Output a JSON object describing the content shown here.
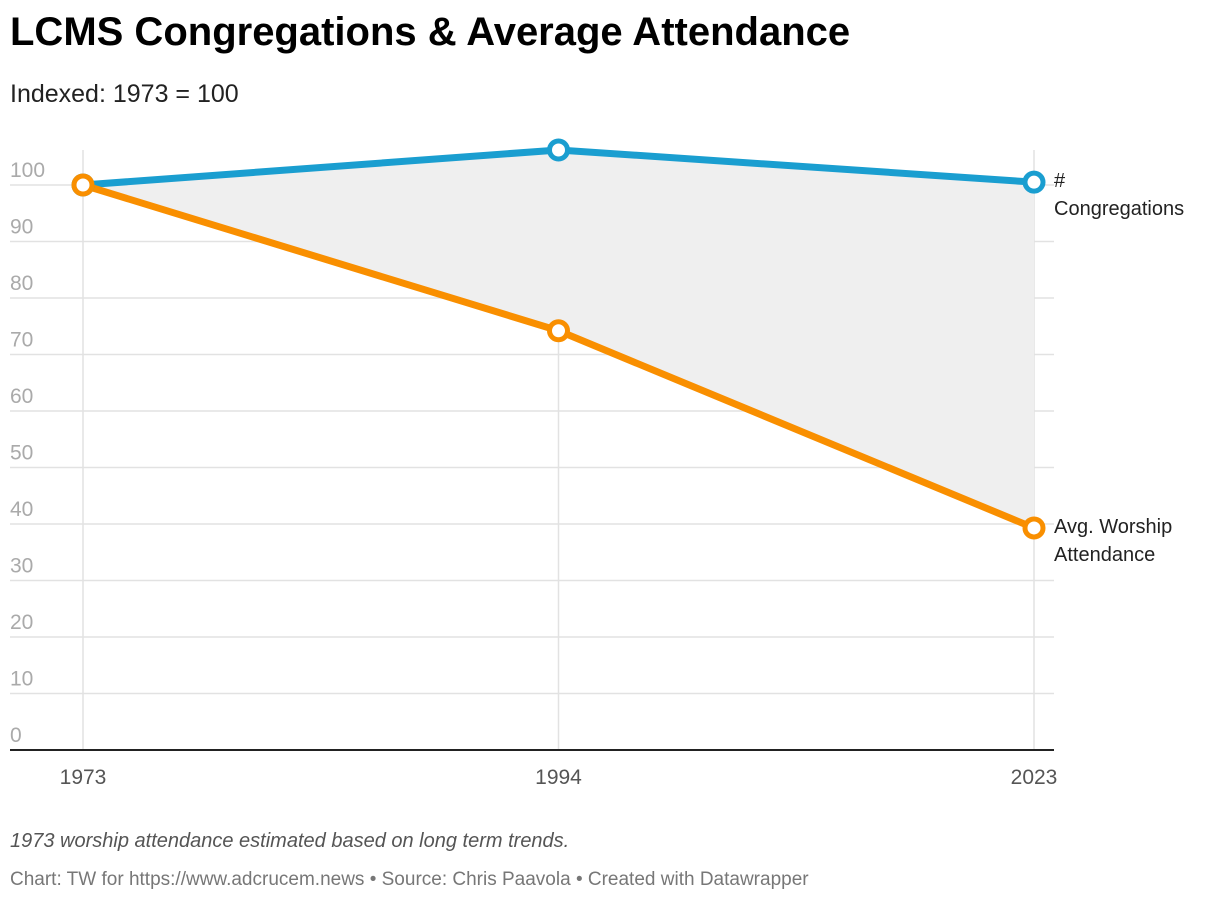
{
  "chart_data": {
    "type": "line",
    "title": "LCMS Congregations & Average Attendance",
    "subtitle": "Indexed: 1973 = 100",
    "note": "1973 worship attendance estimated based on long term trends.",
    "source": "Chart: TW for https://www.adcrucem.news  • Source: Chris Paavola • Created with Datawrapper",
    "categories": [
      "1973",
      "1994",
      "2023"
    ],
    "series": [
      {
        "name": "# Congregations",
        "color": "#1a9ed0",
        "values": [
          100,
          106.2,
          100.5
        ]
      },
      {
        "name": "Avg. Worship Attendance",
        "color": "#f98f00",
        "values": [
          100,
          74.2,
          39.3
        ]
      }
    ],
    "ylim": [
      0,
      100
    ],
    "yticks": [
      0,
      10,
      20,
      30,
      40,
      50,
      60,
      70,
      80,
      90,
      100
    ],
    "grid": true,
    "area_between_color": "#efefef"
  }
}
